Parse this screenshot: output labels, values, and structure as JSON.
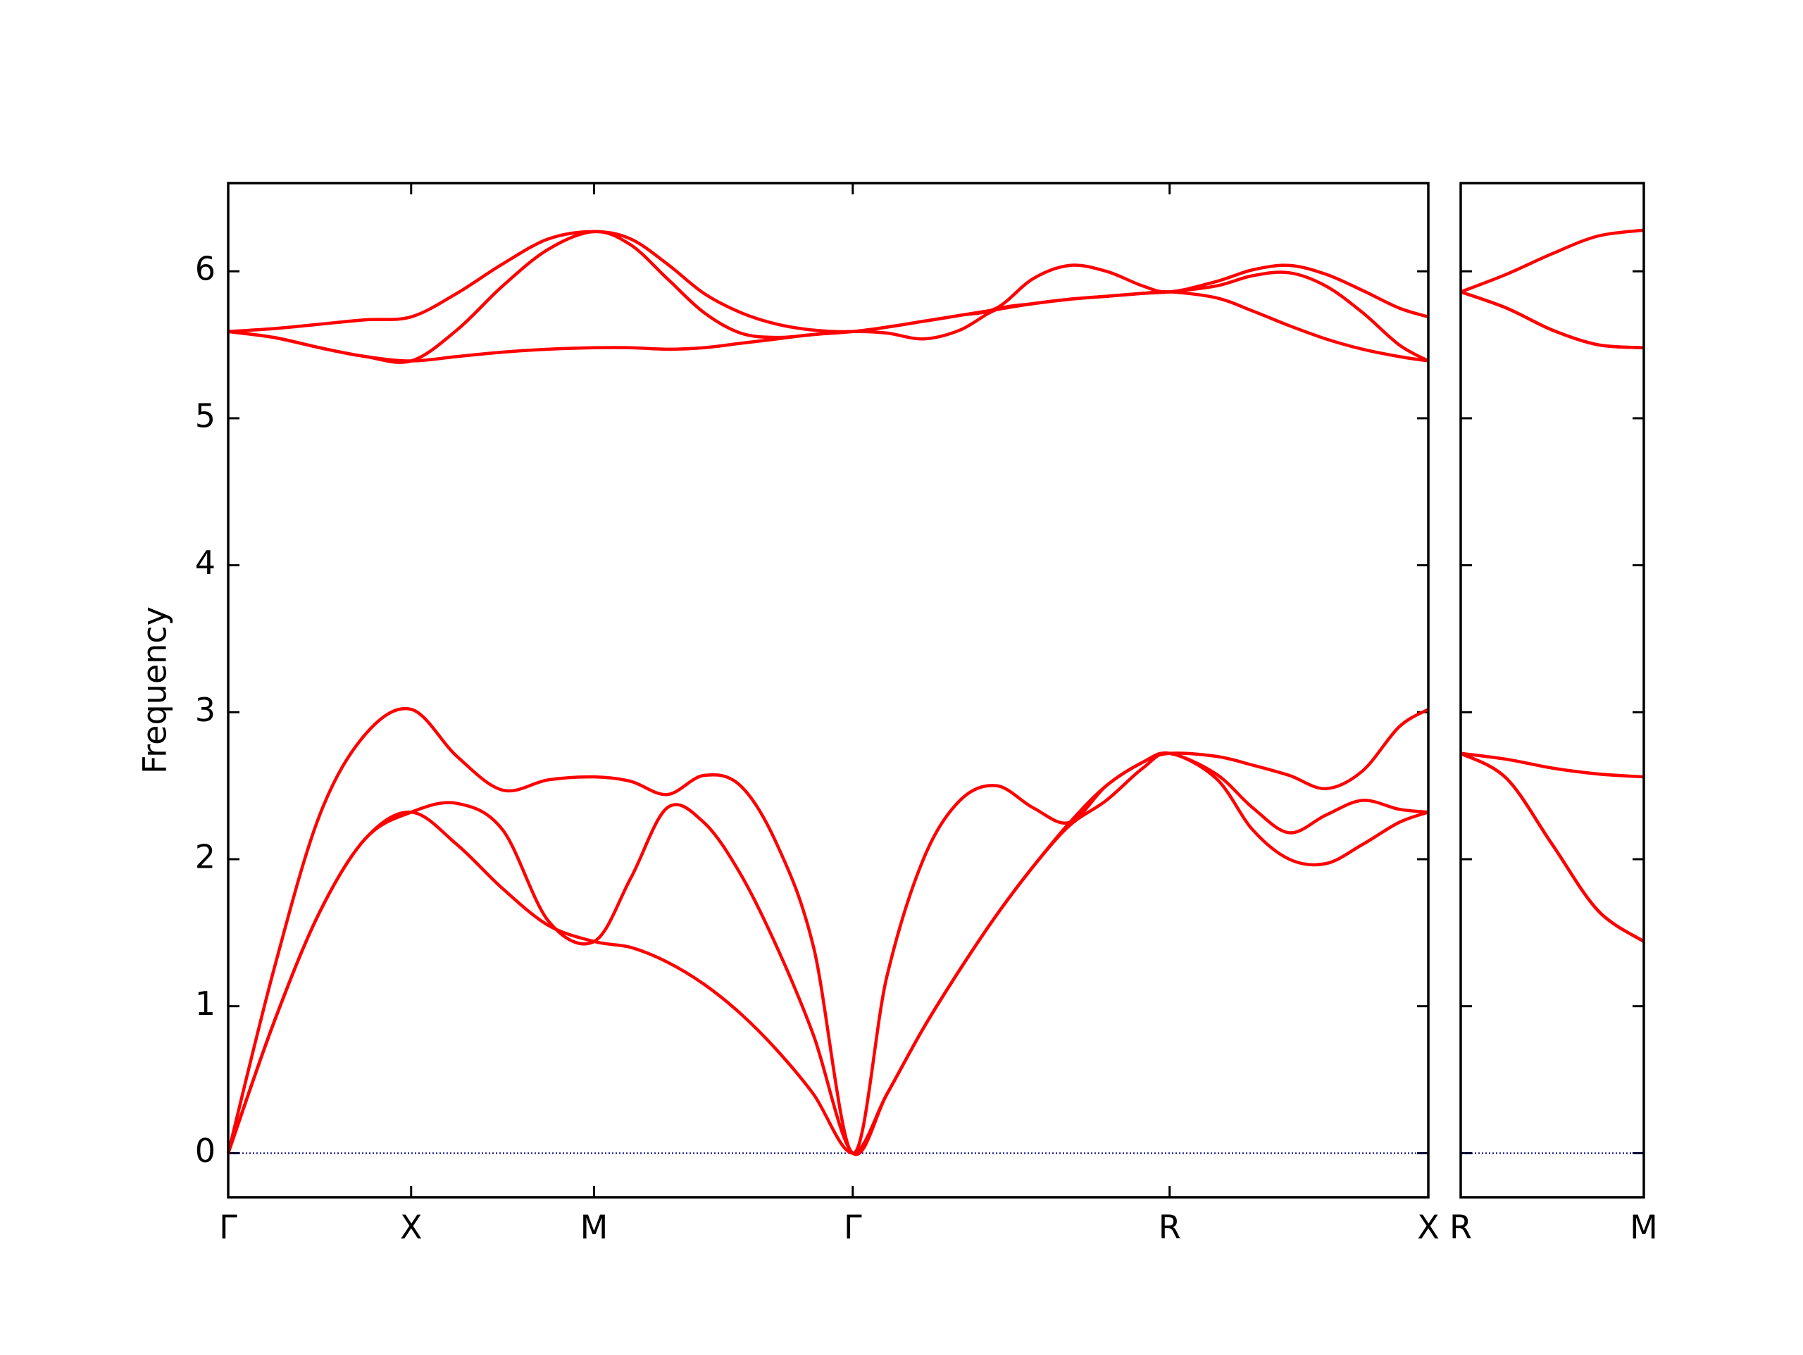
{
  "chart_data": [
    {
      "type": "line",
      "ylabel": "Frequency",
      "x": [
        0,
        0.125,
        0.25,
        0.375,
        0.5,
        0.625,
        0.75,
        0.875,
        1.0,
        1.1,
        1.2,
        1.3,
        1.4,
        1.5,
        1.6,
        1.707,
        1.8,
        1.9,
        2.0,
        2.1,
        2.2,
        2.3,
        2.4,
        2.5,
        2.573,
        2.7,
        2.8,
        2.9,
        3.0,
        3.1,
        3.2,
        3.28
      ],
      "series": [
        {
          "color": "#ff0000",
          "values": [
            0,
            0.89,
            1.64,
            2.14,
            2.32,
            2.1,
            1.8,
            1.55,
            1.44,
            1.4,
            1.3,
            1.15,
            0.95,
            0.7,
            0.4,
            0,
            0.4,
            0.85,
            1.25,
            1.62,
            1.95,
            2.23,
            2.4,
            2.62,
            2.72,
            2.55,
            2.2,
            2.0,
            1.97,
            2.1,
            2.25,
            2.32
          ]
        },
        {
          "color": "#ff0000",
          "values": [
            0,
            0.89,
            1.64,
            2.14,
            2.32,
            2.38,
            2.2,
            1.58,
            1.44,
            1.87,
            2.35,
            2.25,
            1.9,
            1.4,
            0.8,
            0,
            0.4,
            0.85,
            1.25,
            1.62,
            1.95,
            2.25,
            2.5,
            2.66,
            2.72,
            2.58,
            2.35,
            2.18,
            2.3,
            2.4,
            2.34,
            2.32
          ]
        },
        {
          "color": "#ff0000",
          "values": [
            0,
            1.25,
            2.3,
            2.85,
            3.02,
            2.7,
            2.47,
            2.54,
            2.56,
            2.53,
            2.44,
            2.57,
            2.5,
            2.1,
            1.4,
            0,
            1.2,
            2.0,
            2.4,
            2.5,
            2.35,
            2.25,
            2.5,
            2.66,
            2.72,
            2.7,
            2.64,
            2.57,
            2.48,
            2.6,
            2.9,
            3.02
          ]
        },
        {
          "color": "#ff0000",
          "values": [
            5.59,
            5.55,
            5.48,
            5.42,
            5.39,
            5.42,
            5.45,
            5.47,
            5.48,
            5.48,
            5.47,
            5.48,
            5.51,
            5.54,
            5.57,
            5.59,
            5.58,
            5.54,
            5.6,
            5.74,
            5.78,
            5.81,
            5.83,
            5.85,
            5.86,
            5.82,
            5.73,
            5.63,
            5.54,
            5.47,
            5.42,
            5.39
          ]
        },
        {
          "color": "#ff0000",
          "values": [
            5.59,
            5.55,
            5.48,
            5.42,
            5.39,
            5.6,
            5.9,
            6.15,
            6.27,
            6.18,
            5.95,
            5.72,
            5.58,
            5.55,
            5.57,
            5.59,
            5.62,
            5.66,
            5.7,
            5.74,
            5.78,
            5.81,
            5.83,
            5.85,
            5.86,
            5.9,
            5.97,
            5.99,
            5.9,
            5.72,
            5.5,
            5.39
          ]
        },
        {
          "color": "#ff0000",
          "values": [
            5.59,
            5.61,
            5.64,
            5.67,
            5.69,
            5.85,
            6.05,
            6.22,
            6.27,
            6.22,
            6.05,
            5.85,
            5.72,
            5.64,
            5.6,
            5.59,
            5.62,
            5.66,
            5.7,
            5.75,
            5.95,
            6.04,
            6.0,
            5.9,
            5.86,
            5.93,
            6.01,
            6.04,
            5.98,
            5.87,
            5.75,
            5.69
          ]
        }
      ],
      "xlim": [
        0,
        3.28
      ],
      "xticks": [
        {
          "value": 0,
          "label": "Γ"
        },
        {
          "value": 0.5,
          "label": "X"
        },
        {
          "value": 1.0,
          "label": "M"
        },
        {
          "value": 1.707,
          "label": "Γ"
        },
        {
          "value": 2.573,
          "label": "R"
        },
        {
          "value": 3.28,
          "label": "X"
        }
      ],
      "ylim": [
        -0.3,
        6.6
      ],
      "yticks": [
        0,
        1,
        2,
        3,
        4,
        5,
        6
      ],
      "hlines": [
        {
          "value": 0,
          "color": "#00008b"
        }
      ]
    },
    {
      "type": "line",
      "x": [
        0,
        0.125,
        0.25,
        0.375,
        0.5
      ],
      "series": [
        {
          "color": "#ff0000",
          "values": [
            2.72,
            2.55,
            2.1,
            1.65,
            1.44
          ]
        },
        {
          "color": "#ff0000",
          "values": [
            2.72,
            2.55,
            2.1,
            1.65,
            1.44
          ]
        },
        {
          "color": "#ff0000",
          "values": [
            2.72,
            2.68,
            2.62,
            2.58,
            2.56
          ]
        },
        {
          "color": "#ff0000",
          "values": [
            5.86,
            5.75,
            5.6,
            5.5,
            5.48
          ]
        },
        {
          "color": "#ff0000",
          "values": [
            5.86,
            5.75,
            5.6,
            5.5,
            5.48
          ]
        },
        {
          "color": "#ff0000",
          "values": [
            5.86,
            5.98,
            6.12,
            6.24,
            6.28
          ]
        }
      ],
      "xlim": [
        0,
        0.5
      ],
      "xticks": [
        {
          "value": 0,
          "label": "R"
        },
        {
          "value": 0.5,
          "label": "M"
        }
      ],
      "ylim": [
        -0.3,
        6.6
      ],
      "yticks": [
        0,
        1,
        2,
        3,
        4,
        5,
        6
      ],
      "hlines": [
        {
          "value": 0,
          "color": "#00008b"
        }
      ]
    }
  ]
}
